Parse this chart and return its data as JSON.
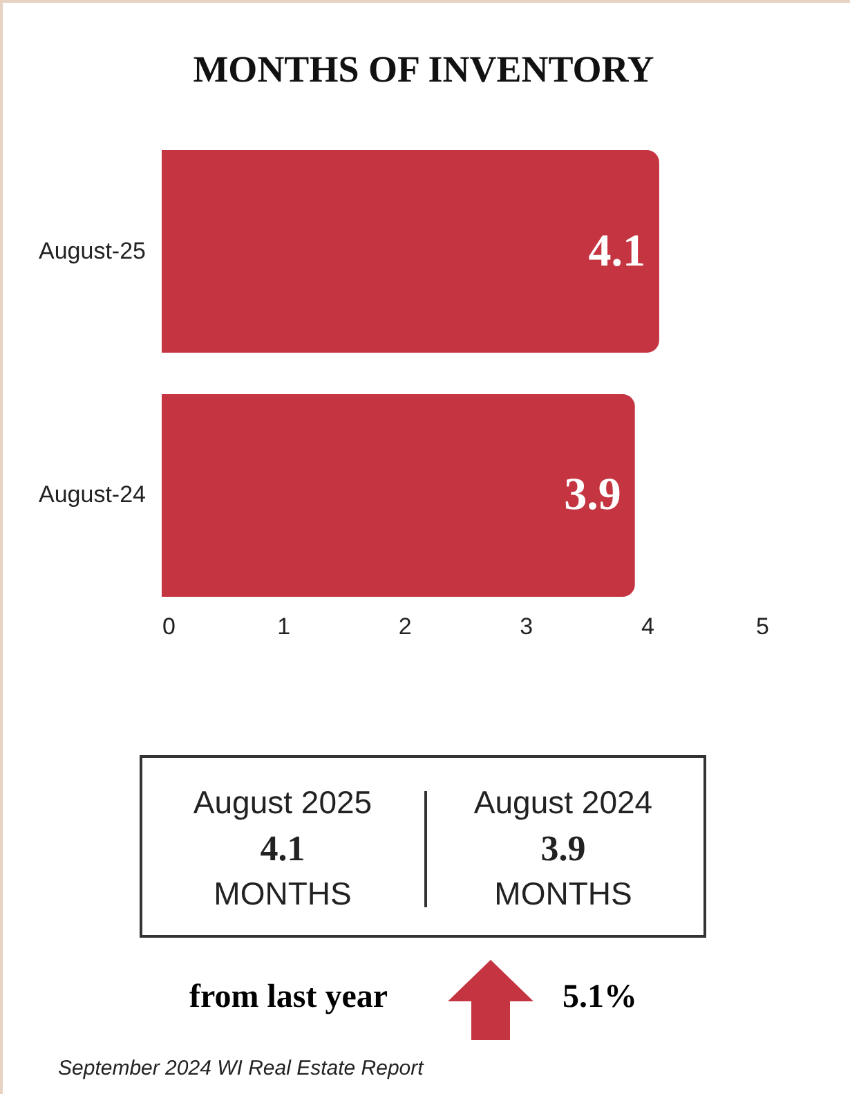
{
  "chart_data": {
    "type": "bar",
    "title": "MONTHS OF INVENTORY",
    "orientation": "horizontal",
    "categories": [
      "August-25",
      "August-24"
    ],
    "values": [
      4.1,
      3.9
    ],
    "color": "#c43441",
    "data_labels": true,
    "xlim": [
      0,
      5
    ],
    "xticks": [
      0,
      1,
      2,
      3,
      4,
      5
    ],
    "grid": false,
    "annotations": [
      "August 2025",
      "4.1",
      "MONTHS",
      "August 2024",
      "3.9",
      "MONTHS",
      "from last year",
      "5.1%",
      "September 2024 WI Real Estate Report"
    ]
  }
}
